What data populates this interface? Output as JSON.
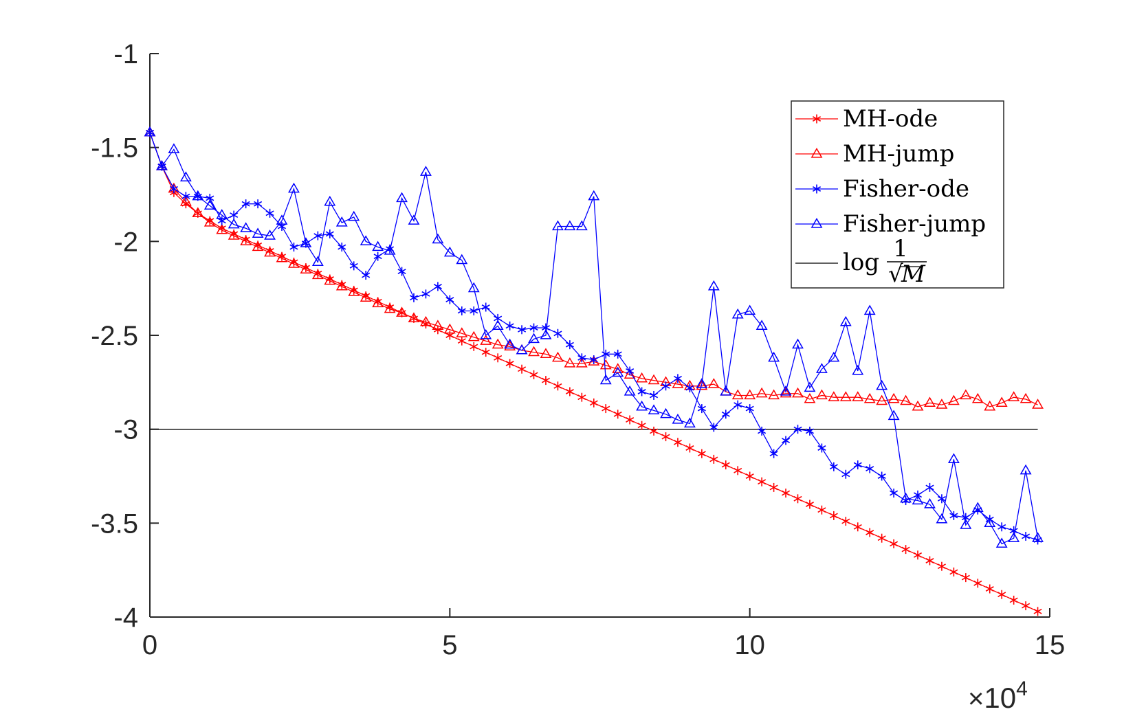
{
  "chart_data": {
    "type": "line",
    "title": "",
    "xlabel": "",
    "ylabel": "",
    "xlim": [
      0,
      150000
    ],
    "ylim": [
      -4,
      -1
    ],
    "x_ticks": [
      0,
      50000,
      100000,
      150000
    ],
    "x_tick_labels": [
      "0",
      "5",
      "10",
      "15"
    ],
    "x_multiplier": {
      "times": "×",
      "base": "10",
      "exponent": "4"
    },
    "y_ticks": [
      -1,
      -1.5,
      -2,
      -2.5,
      -3,
      -3.5,
      -4
    ],
    "y_tick_labels": [
      "-1",
      "-1.5",
      "-2",
      "-2.5",
      "-3",
      "-3.5",
      "-4"
    ],
    "grid": false,
    "legend_position": "top-right",
    "x": [
      0,
      2000,
      4000,
      6000,
      8000,
      10000,
      12000,
      14000,
      16000,
      18000,
      20000,
      22000,
      24000,
      26000,
      28000,
      30000,
      32000,
      34000,
      36000,
      38000,
      40000,
      42000,
      44000,
      46000,
      48000,
      50000,
      52000,
      54000,
      56000,
      58000,
      60000,
      62000,
      64000,
      66000,
      68000,
      70000,
      72000,
      74000,
      76000,
      78000,
      80000,
      82000,
      84000,
      86000,
      88000,
      90000,
      92000,
      94000,
      96000,
      98000,
      100000,
      102000,
      104000,
      106000,
      108000,
      110000,
      112000,
      114000,
      116000,
      118000,
      120000,
      122000,
      124000,
      126000,
      128000,
      130000,
      132000,
      134000,
      136000,
      138000,
      140000,
      142000,
      144000,
      146000,
      148000
    ],
    "series": [
      {
        "name": "MH-ode",
        "color": "#ff0000",
        "marker": "star",
        "values": [
          -1.42,
          -1.6,
          -1.74,
          -1.8,
          -1.85,
          -1.89,
          -1.93,
          -1.96,
          -1.99,
          -2.02,
          -2.05,
          -2.08,
          -2.11,
          -2.14,
          -2.17,
          -2.2,
          -2.23,
          -2.26,
          -2.29,
          -2.32,
          -2.35,
          -2.38,
          -2.41,
          -2.44,
          -2.47,
          -2.5,
          -2.53,
          -2.56,
          -2.59,
          -2.62,
          -2.65,
          -2.68,
          -2.71,
          -2.74,
          -2.77,
          -2.8,
          -2.83,
          -2.86,
          -2.89,
          -2.92,
          -2.95,
          -2.98,
          -3.01,
          -3.04,
          -3.07,
          -3.1,
          -3.13,
          -3.16,
          -3.19,
          -3.22,
          -3.25,
          -3.28,
          -3.31,
          -3.34,
          -3.37,
          -3.4,
          -3.43,
          -3.46,
          -3.49,
          -3.52,
          -3.55,
          -3.58,
          -3.61,
          -3.64,
          -3.67,
          -3.7,
          -3.73,
          -3.76,
          -3.79,
          -3.82,
          -3.85,
          -3.88,
          -3.91,
          -3.94,
          -3.97
        ]
      },
      {
        "name": "MH-jump",
        "color": "#ff0000",
        "marker": "triangle",
        "values": [
          -1.42,
          -1.6,
          -1.72,
          -1.79,
          -1.85,
          -1.9,
          -1.94,
          -1.97,
          -2.0,
          -2.03,
          -2.06,
          -2.09,
          -2.12,
          -2.15,
          -2.18,
          -2.21,
          -2.24,
          -2.27,
          -2.3,
          -2.33,
          -2.36,
          -2.38,
          -2.41,
          -2.43,
          -2.45,
          -2.47,
          -2.49,
          -2.51,
          -2.53,
          -2.55,
          -2.56,
          -2.58,
          -2.59,
          -2.6,
          -2.62,
          -2.65,
          -2.65,
          -2.64,
          -2.66,
          -2.68,
          -2.71,
          -2.73,
          -2.74,
          -2.75,
          -2.76,
          -2.77,
          -2.77,
          -2.76,
          -2.8,
          -2.82,
          -2.82,
          -2.81,
          -2.82,
          -2.81,
          -2.81,
          -2.84,
          -2.82,
          -2.83,
          -2.83,
          -2.83,
          -2.84,
          -2.85,
          -2.84,
          -2.85,
          -2.88,
          -2.86,
          -2.87,
          -2.85,
          -2.82,
          -2.84,
          -2.88,
          -2.86,
          -2.83,
          -2.84,
          -2.87
        ]
      },
      {
        "name": "Fisher-ode",
        "color": "#0000ff",
        "marker": "star",
        "values": [
          -1.42,
          -1.6,
          -1.72,
          -1.76,
          -1.76,
          -1.77,
          -1.89,
          -1.86,
          -1.8,
          -1.8,
          -1.85,
          -1.92,
          -2.03,
          -2.01,
          -1.97,
          -1.96,
          -2.03,
          -2.13,
          -2.18,
          -2.08,
          -2.04,
          -2.16,
          -2.3,
          -2.28,
          -2.24,
          -2.31,
          -2.37,
          -2.37,
          -2.35,
          -2.41,
          -2.45,
          -2.47,
          -2.46,
          -2.46,
          -2.49,
          -2.55,
          -2.62,
          -2.63,
          -2.6,
          -2.6,
          -2.69,
          -2.8,
          -2.82,
          -2.77,
          -2.73,
          -2.78,
          -2.89,
          -2.99,
          -2.92,
          -2.87,
          -2.89,
          -3.01,
          -3.13,
          -3.06,
          -3.0,
          -3.01,
          -3.1,
          -3.2,
          -3.24,
          -3.19,
          -3.21,
          -3.25,
          -3.34,
          -3.38,
          -3.35,
          -3.31,
          -3.37,
          -3.46,
          -3.47,
          -3.43,
          -3.48,
          -3.52,
          -3.54,
          -3.57,
          -3.59
        ]
      },
      {
        "name": "Fisher-jump",
        "color": "#0000ff",
        "marker": "triangle",
        "values": [
          -1.42,
          -1.6,
          -1.51,
          -1.66,
          -1.76,
          -1.81,
          -1.86,
          -1.91,
          -1.93,
          -1.96,
          -1.97,
          -1.89,
          -1.72,
          -2.01,
          -2.11,
          -1.79,
          -1.9,
          -1.87,
          -2.0,
          -2.03,
          -2.05,
          -1.77,
          -1.89,
          -1.63,
          -1.99,
          -2.06,
          -2.1,
          -2.25,
          -2.5,
          -2.45,
          -2.55,
          -2.58,
          -2.52,
          -2.5,
          -1.92,
          -1.92,
          -1.92,
          -1.76,
          -2.74,
          -2.7,
          -2.8,
          -2.88,
          -2.9,
          -2.92,
          -2.95,
          -2.97,
          -2.76,
          -2.24,
          -2.8,
          -2.39,
          -2.37,
          -2.45,
          -2.62,
          -2.8,
          -2.55,
          -2.78,
          -2.68,
          -2.62,
          -2.43,
          -2.69,
          -2.37,
          -2.77,
          -2.93,
          -3.37,
          -3.38,
          -3.4,
          -3.48,
          -3.16,
          -3.51,
          -3.42,
          -3.5,
          -3.61,
          -3.58,
          -3.22,
          -3.58
        ]
      },
      {
        "name": "log 1/√M",
        "color": "#000000",
        "marker": "none",
        "constant": -3.0
      }
    ]
  },
  "legend": {
    "entries": [
      {
        "label": "MH-ode",
        "color": "#ff0000",
        "marker": "star"
      },
      {
        "label": "MH-jump",
        "color": "#ff0000",
        "marker": "triangle"
      },
      {
        "label": "Fisher-ode",
        "color": "#0000ff",
        "marker": "star"
      },
      {
        "label": "Fisher-jump",
        "color": "#0000ff",
        "marker": "triangle"
      }
    ],
    "ref_entry": {
      "log": "log",
      "numerator": "1",
      "radical": "√",
      "variable": "M"
    }
  }
}
